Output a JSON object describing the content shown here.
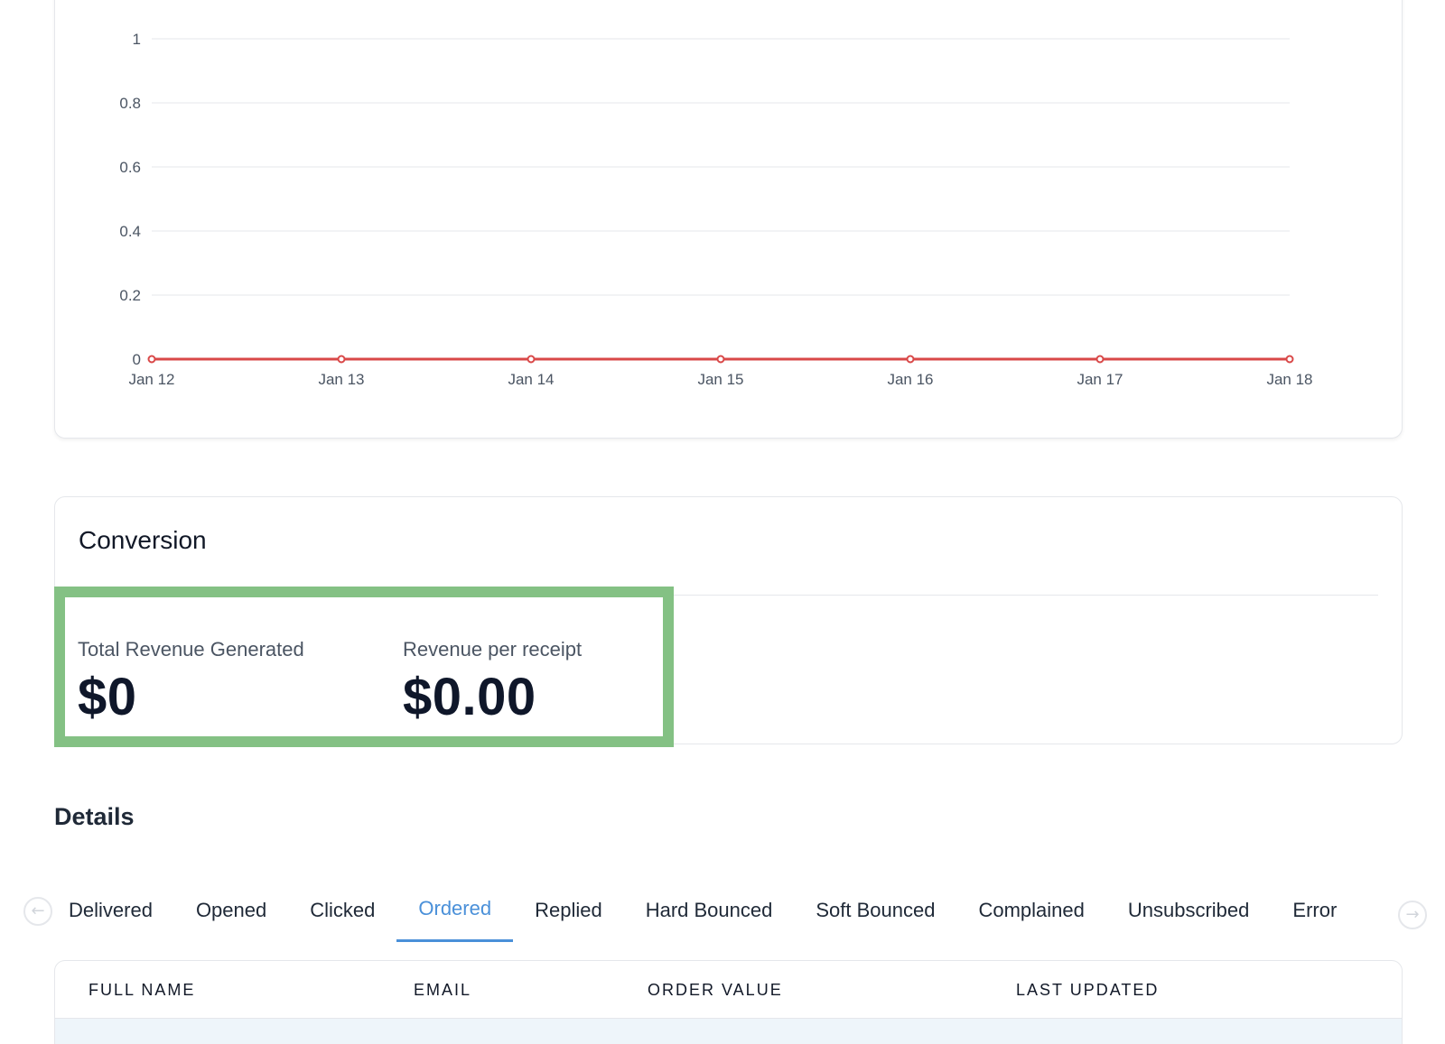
{
  "chart_data": {
    "type": "line",
    "categories": [
      "Jan 12",
      "Jan 13",
      "Jan 14",
      "Jan 15",
      "Jan 16",
      "Jan 17",
      "Jan 18"
    ],
    "series": [
      {
        "values": [
          0,
          0,
          0,
          0,
          0,
          0,
          0
        ]
      }
    ],
    "yticks": [
      "0",
      "0.2",
      "0.4",
      "0.6",
      "0.8",
      "1"
    ],
    "ylim": [
      0,
      1
    ],
    "grid": true,
    "colors": {
      "series": "#d94848",
      "grid": "#e5e7eb"
    }
  },
  "conversion": {
    "title": "Conversion",
    "total_revenue_label": "Total Revenue Generated",
    "total_revenue_value": "$0",
    "revenue_per_receipt_label": "Revenue per receipt",
    "revenue_per_receipt_value": "$0.00",
    "highlight_color": "#84c184"
  },
  "details": {
    "title": "Details",
    "prev_icon": "arrow-left-circle-icon",
    "next_icon": "arrow-right-circle-icon",
    "tabs": [
      {
        "label": "Delivered"
      },
      {
        "label": "Opened"
      },
      {
        "label": "Clicked"
      },
      {
        "label": "Ordered",
        "active": true
      },
      {
        "label": "Replied"
      },
      {
        "label": "Hard Bounced"
      },
      {
        "label": "Soft Bounced"
      },
      {
        "label": "Complained"
      },
      {
        "label": "Unsubscribed"
      },
      {
        "label": "Error"
      }
    ],
    "active_color": "#4a90d9"
  },
  "table": {
    "columns": [
      "FULL NAME",
      "EMAIL",
      "ORDER VALUE",
      "LAST UPDATED"
    ]
  }
}
